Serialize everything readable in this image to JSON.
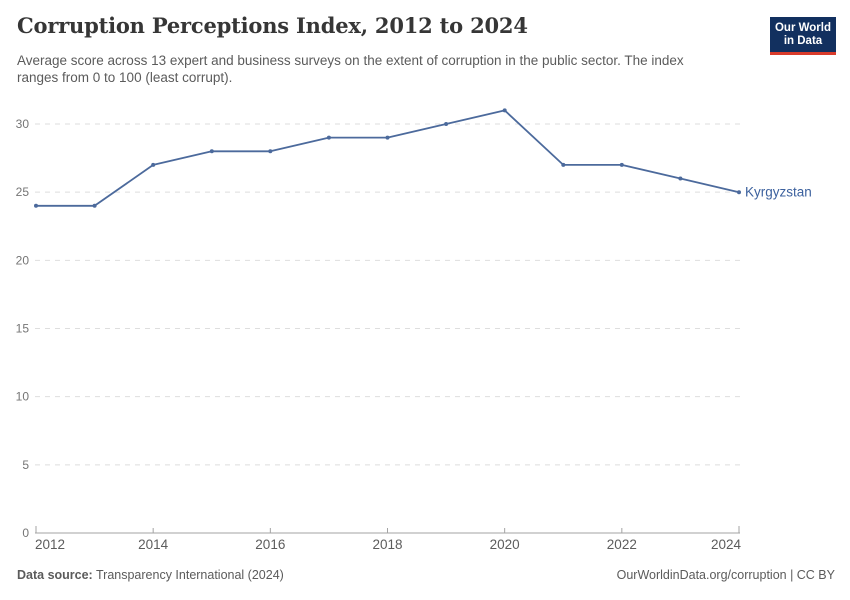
{
  "header": {
    "title": "Corruption Perceptions Index, 2012 to 2024",
    "subtitle": "Average score across 13 expert and business surveys on the extent of corruption in the public sector. The index ranges from 0 to 100 (least corrupt)."
  },
  "logo": {
    "line1": "Our World",
    "line2": "in Data",
    "bg_color": "#12305F",
    "accent_color": "#D93B2B"
  },
  "footer": {
    "datasource_label": "Data source:",
    "datasource_value": "Transparency International (2024)",
    "right_text": "OurWorldinData.org/corruption | CC BY"
  },
  "chart_data": {
    "type": "line",
    "title": "Corruption Perceptions Index, 2012 to 2024",
    "x": [
      2012,
      2013,
      2014,
      2015,
      2016,
      2017,
      2018,
      2019,
      2020,
      2021,
      2022,
      2023,
      2024
    ],
    "series": [
      {
        "name": "Kyrgyzstan",
        "color": "#4C6A9C",
        "label_color": "#3C619E",
        "values": [
          24,
          24,
          27,
          28,
          28,
          29,
          29,
          30,
          31,
          27,
          27,
          26,
          25
        ]
      }
    ],
    "x_ticks": [
      2012,
      2014,
      2016,
      2018,
      2020,
      2022,
      2024
    ],
    "y_ticks": [
      0,
      5,
      10,
      15,
      20,
      25,
      30
    ],
    "xlim": [
      2012,
      2024
    ],
    "ylim": [
      0,
      31
    ],
    "xlabel": "",
    "ylabel": "",
    "grid": "horizontal-dashed",
    "legend": "line-end-label"
  }
}
